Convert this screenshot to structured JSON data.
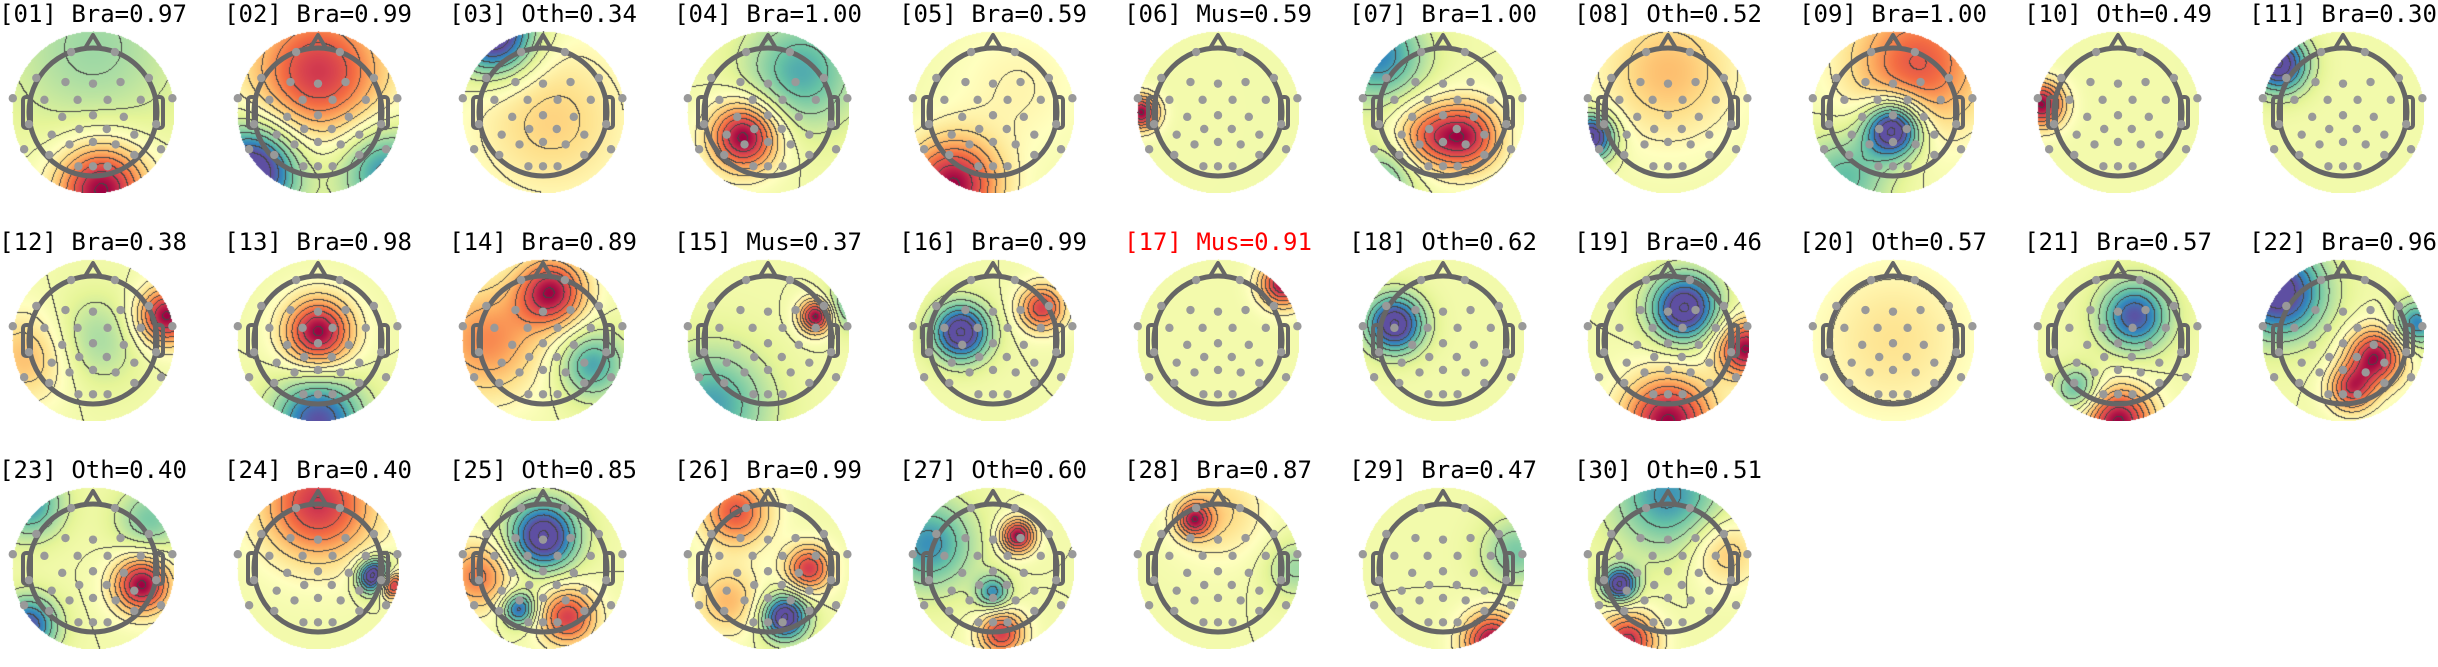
{
  "chart_data": {
    "type": "heatmap",
    "colormap": "Spectral_r",
    "highlight_color": "#ff0000",
    "text_color": "#000000",
    "electrode_color": "#999999",
    "head_outline_color": "#666666",
    "panels": [
      {
        "title": "[01] Bra=0.97",
        "component": "01",
        "label": "Bra",
        "probability": 0.97
      },
      {
        "title": "[02] Bra=0.99",
        "component": "02",
        "label": "Bra",
        "probability": 0.99
      },
      {
        "title": "[03] Oth=0.34",
        "component": "03",
        "label": "Oth",
        "probability": 0.34
      },
      {
        "title": "[04] Bra=1.00",
        "component": "04",
        "label": "Bra",
        "probability": 1.0
      },
      {
        "title": "[05] Bra=0.59",
        "component": "05",
        "label": "Bra",
        "probability": 0.59
      },
      {
        "title": "[06] Mus=0.59",
        "component": "06",
        "label": "Mus",
        "probability": 0.59
      },
      {
        "title": "[07] Bra=1.00",
        "component": "07",
        "label": "Bra",
        "probability": 1.0
      },
      {
        "title": "[08] Oth=0.52",
        "component": "08",
        "label": "Oth",
        "probability": 0.52
      },
      {
        "title": "[09] Bra=1.00",
        "component": "09",
        "label": "Bra",
        "probability": 1.0
      },
      {
        "title": "[10] Oth=0.49",
        "component": "10",
        "label": "Oth",
        "probability": 0.49
      },
      {
        "title": "[11] Bra=0.30",
        "component": "11",
        "label": "Bra",
        "probability": 0.3
      },
      {
        "title": "[12] Bra=0.38",
        "component": "12",
        "label": "Bra",
        "probability": 0.38
      },
      {
        "title": "[13] Bra=0.98",
        "component": "13",
        "label": "Bra",
        "probability": 0.98
      },
      {
        "title": "[14] Bra=0.89",
        "component": "14",
        "label": "Bra",
        "probability": 0.89
      },
      {
        "title": "[15] Mus=0.37",
        "component": "15",
        "label": "Mus",
        "probability": 0.37
      },
      {
        "title": "[16] Bra=0.99",
        "component": "16",
        "label": "Bra",
        "probability": 0.99
      },
      {
        "title": "[17] Mus=0.91",
        "component": "17",
        "label": "Mus",
        "probability": 0.91,
        "highlighted": true
      },
      {
        "title": "[18] Oth=0.62",
        "component": "18",
        "label": "Oth",
        "probability": 0.62
      },
      {
        "title": "[19] Bra=0.46",
        "component": "19",
        "label": "Bra",
        "probability": 0.46
      },
      {
        "title": "[20] Oth=0.57",
        "component": "20",
        "label": "Oth",
        "probability": 0.57
      },
      {
        "title": "[21] Bra=0.57",
        "component": "21",
        "label": "Bra",
        "probability": 0.57
      },
      {
        "title": "[22] Bra=0.96",
        "component": "22",
        "label": "Bra",
        "probability": 0.96
      },
      {
        "title": "[23] Oth=0.40",
        "component": "23",
        "label": "Oth",
        "probability": 0.4
      },
      {
        "title": "[24] Bra=0.40",
        "component": "24",
        "label": "Bra",
        "probability": 0.4
      },
      {
        "title": "[25] Oth=0.85",
        "component": "25",
        "label": "Oth",
        "probability": 0.85
      },
      {
        "title": "[26] Bra=0.99",
        "component": "26",
        "label": "Bra",
        "probability": 0.99
      },
      {
        "title": "[27] Oth=0.60",
        "component": "27",
        "label": "Oth",
        "probability": 0.6
      },
      {
        "title": "[28] Bra=0.87",
        "component": "28",
        "label": "Bra",
        "probability": 0.87
      },
      {
        "title": "[29] Bra=0.47",
        "component": "29",
        "label": "Bra",
        "probability": 0.47
      },
      {
        "title": "[30] Oth=0.51",
        "component": "30",
        "label": "Oth",
        "probability": 0.51
      }
    ]
  }
}
